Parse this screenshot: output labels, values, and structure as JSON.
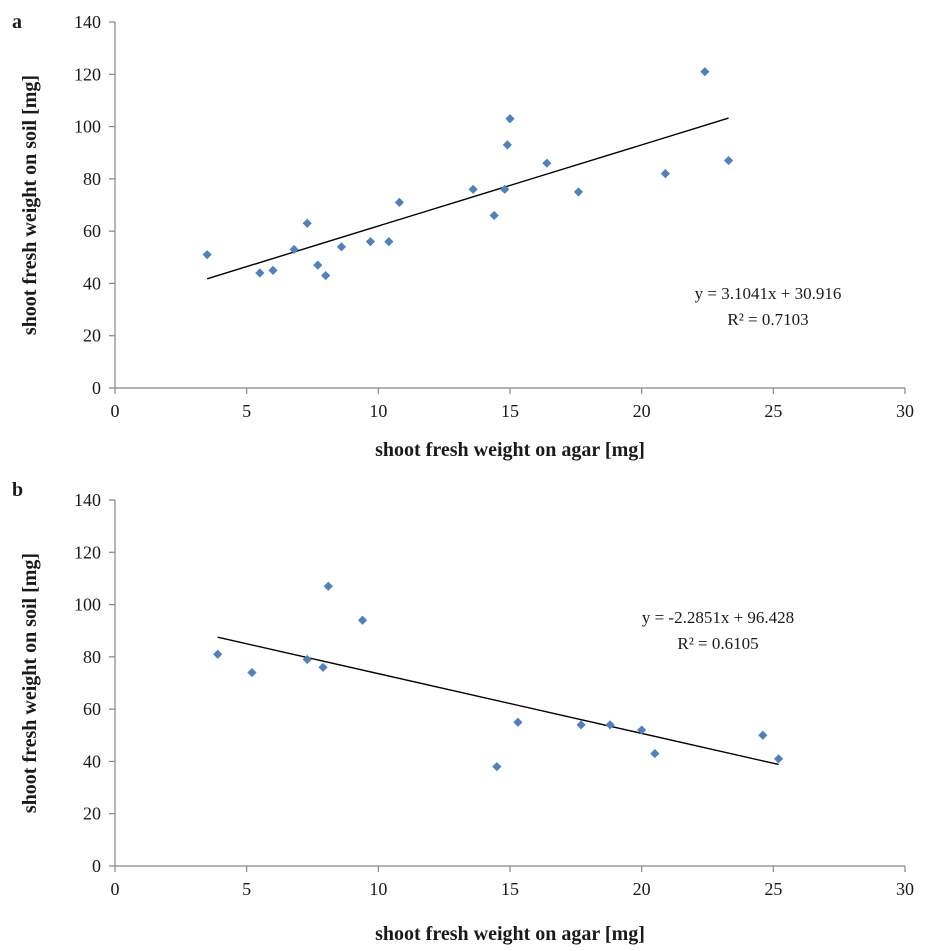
{
  "colors": {
    "marker": "#4f81bd",
    "trendline": "#000000",
    "axis": "#868686"
  },
  "chart_data": [
    {
      "type": "scatter",
      "panel_label": "a",
      "xlabel": "shoot fresh weight on agar [mg]",
      "ylabel": "shoot fresh weight on soil [mg]",
      "xlim": [
        0,
        30
      ],
      "ylim": [
        0,
        140
      ],
      "x_ticks": [
        "0",
        "5",
        "10",
        "15",
        "20",
        "25",
        "30"
      ],
      "y_ticks": [
        "0",
        "20",
        "40",
        "60",
        "80",
        "100",
        "120",
        "140"
      ],
      "grid": false,
      "marker": "diamond",
      "points": [
        {
          "x": 3.5,
          "y": 51
        },
        {
          "x": 5.5,
          "y": 44
        },
        {
          "x": 6.0,
          "y": 45
        },
        {
          "x": 6.8,
          "y": 53
        },
        {
          "x": 7.3,
          "y": 63
        },
        {
          "x": 7.7,
          "y": 47
        },
        {
          "x": 8.0,
          "y": 43
        },
        {
          "x": 8.6,
          "y": 54
        },
        {
          "x": 9.7,
          "y": 56
        },
        {
          "x": 10.4,
          "y": 56
        },
        {
          "x": 10.8,
          "y": 71
        },
        {
          "x": 13.6,
          "y": 76
        },
        {
          "x": 14.4,
          "y": 66
        },
        {
          "x": 14.8,
          "y": 76
        },
        {
          "x": 14.9,
          "y": 93
        },
        {
          "x": 15.0,
          "y": 103
        },
        {
          "x": 16.4,
          "y": 86
        },
        {
          "x": 17.6,
          "y": 75
        },
        {
          "x": 20.9,
          "y": 82
        },
        {
          "x": 22.4,
          "y": 121
        },
        {
          "x": 23.3,
          "y": 87
        }
      ],
      "trendline": {
        "slope": 3.1041,
        "intercept": 30.916,
        "x_range": [
          3.5,
          23.3
        ],
        "equation": "y = 3.1041x + 30.916",
        "r2": "R² = 0.7103"
      }
    },
    {
      "type": "scatter",
      "panel_label": "b",
      "xlabel": "shoot fresh weight on agar [mg]",
      "ylabel": "shoot fresh weight on soil [mg]",
      "xlim": [
        0,
        30
      ],
      "ylim": [
        0,
        140
      ],
      "x_ticks": [
        "0",
        "5",
        "10",
        "15",
        "20",
        "25",
        "30"
      ],
      "y_ticks": [
        "0",
        "20",
        "40",
        "60",
        "80",
        "100",
        "120",
        "140"
      ],
      "grid": false,
      "marker": "diamond",
      "points": [
        {
          "x": 3.9,
          "y": 81
        },
        {
          "x": 5.2,
          "y": 74
        },
        {
          "x": 7.3,
          "y": 79
        },
        {
          "x": 7.9,
          "y": 76
        },
        {
          "x": 8.1,
          "y": 107
        },
        {
          "x": 9.4,
          "y": 94
        },
        {
          "x": 14.5,
          "y": 38
        },
        {
          "x": 15.3,
          "y": 55
        },
        {
          "x": 17.7,
          "y": 54
        },
        {
          "x": 18.8,
          "y": 54
        },
        {
          "x": 20.0,
          "y": 52
        },
        {
          "x": 20.5,
          "y": 43
        },
        {
          "x": 24.6,
          "y": 50
        },
        {
          "x": 25.2,
          "y": 41
        }
      ],
      "trendline": {
        "slope": -2.2851,
        "intercept": 96.428,
        "x_range": [
          3.9,
          25.2
        ],
        "equation": "y = -2.2851x + 96.428",
        "r2": "R² = 0.6105"
      }
    }
  ]
}
